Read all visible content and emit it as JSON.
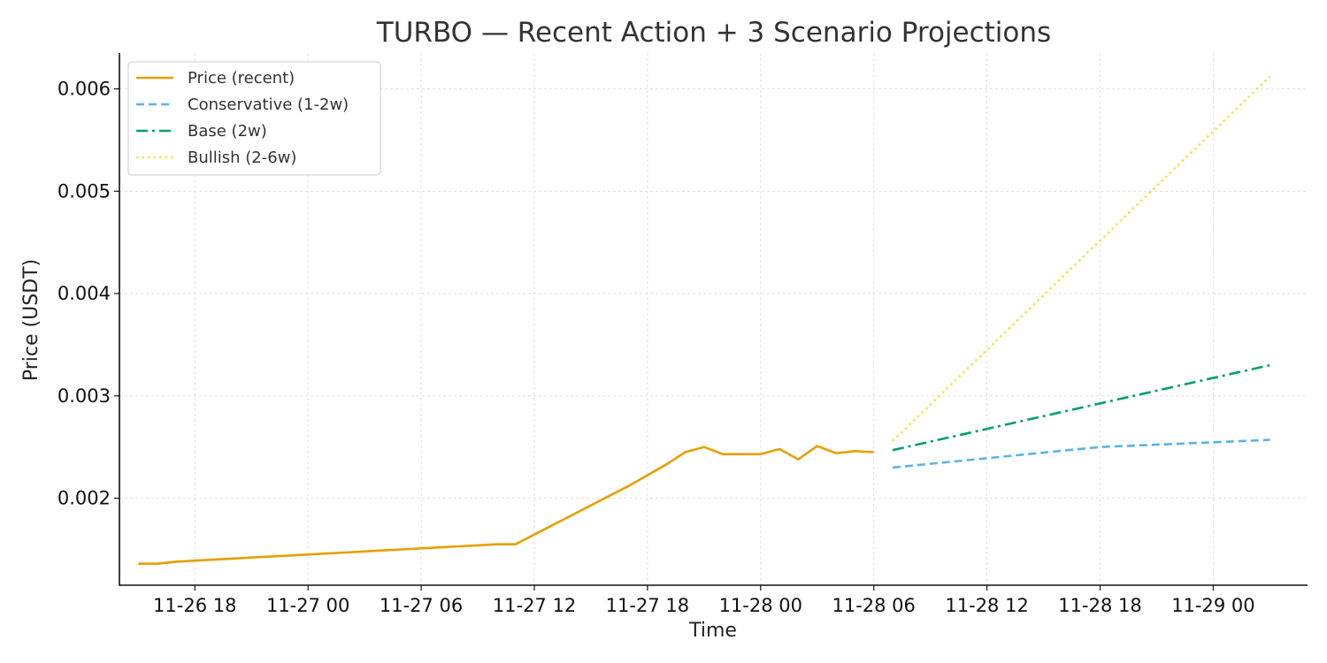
{
  "chart_data": {
    "type": "line",
    "title": "TURBO — Recent Action + 3 Scenario Projections",
    "xlabel": "Time",
    "ylabel": "Price (USDT)",
    "x_ticks": [
      "11-26 18",
      "11-27 00",
      "11-27 06",
      "11-27 12",
      "11-27 18",
      "11-28 00",
      "11-28 06",
      "11-28 12",
      "11-28 18",
      "11-29 00"
    ],
    "y_ticks": [
      "0.002",
      "0.003",
      "0.004",
      "0.005",
      "0.006"
    ],
    "y_tick_values": [
      0.002,
      0.003,
      0.004,
      0.005,
      0.006
    ],
    "xlim": [
      "11-26 14",
      "11-29 05"
    ],
    "ylim": [
      0.00115,
      0.00635
    ],
    "grid": true,
    "legend_position": "top-left",
    "series": [
      {
        "name": "Price (recent)",
        "style": "solid",
        "color": "#E69F00",
        "points": [
          [
            "11-26 15",
            0.00136
          ],
          [
            "11-26 16",
            0.00136
          ],
          [
            "11-26 17",
            0.00138
          ],
          [
            "11-26 18",
            0.00139
          ],
          [
            "11-26 19",
            0.0014
          ],
          [
            "11-26 20",
            0.00141
          ],
          [
            "11-26 21",
            0.00142
          ],
          [
            "11-26 22",
            0.00143
          ],
          [
            "11-26 23",
            0.00144
          ],
          [
            "11-27 00",
            0.00145
          ],
          [
            "11-27 01",
            0.00146
          ],
          [
            "11-27 02",
            0.00147
          ],
          [
            "11-27 03",
            0.00148
          ],
          [
            "11-27 04",
            0.00149
          ],
          [
            "11-27 05",
            0.0015
          ],
          [
            "11-27 06",
            0.00151
          ],
          [
            "11-27 07",
            0.00152
          ],
          [
            "11-27 08",
            0.00153
          ],
          [
            "11-27 09",
            0.00154
          ],
          [
            "11-27 10",
            0.00155
          ],
          [
            "11-27 11",
            0.00155
          ],
          [
            "11-27 13",
            0.00174
          ],
          [
            "11-27 15",
            0.00193
          ],
          [
            "11-27 17",
            0.00212
          ],
          [
            "11-27 19",
            0.00233
          ],
          [
            "11-27 20",
            0.00245
          ],
          [
            "11-27 21",
            0.0025
          ],
          [
            "11-27 22",
            0.00243
          ],
          [
            "11-27 23",
            0.00243
          ],
          [
            "11-28 00",
            0.00243
          ],
          [
            "11-28 01",
            0.00248
          ],
          [
            "11-28 02",
            0.00238
          ],
          [
            "11-28 03",
            0.00251
          ],
          [
            "11-28 04",
            0.00244
          ],
          [
            "11-28 05",
            0.00246
          ],
          [
            "11-28 06",
            0.00245
          ]
        ]
      },
      {
        "name": "Conservative (1-2w)",
        "style": "dashed",
        "color": "#56B4E9",
        "points": [
          [
            "11-28 07",
            0.0023
          ],
          [
            "11-28 18",
            0.0025
          ],
          [
            "11-29 03",
            0.00257
          ]
        ]
      },
      {
        "name": "Base (2w)",
        "style": "dashdot",
        "color": "#009E73",
        "points": [
          [
            "11-28 07",
            0.00247
          ],
          [
            "11-29 03",
            0.0033
          ]
        ]
      },
      {
        "name": "Bullish (2-6w)",
        "style": "dotted",
        "color": "#F0E442",
        "points": [
          [
            "11-28 07",
            0.00256
          ],
          [
            "11-29 03",
            0.00612
          ]
        ]
      }
    ]
  }
}
